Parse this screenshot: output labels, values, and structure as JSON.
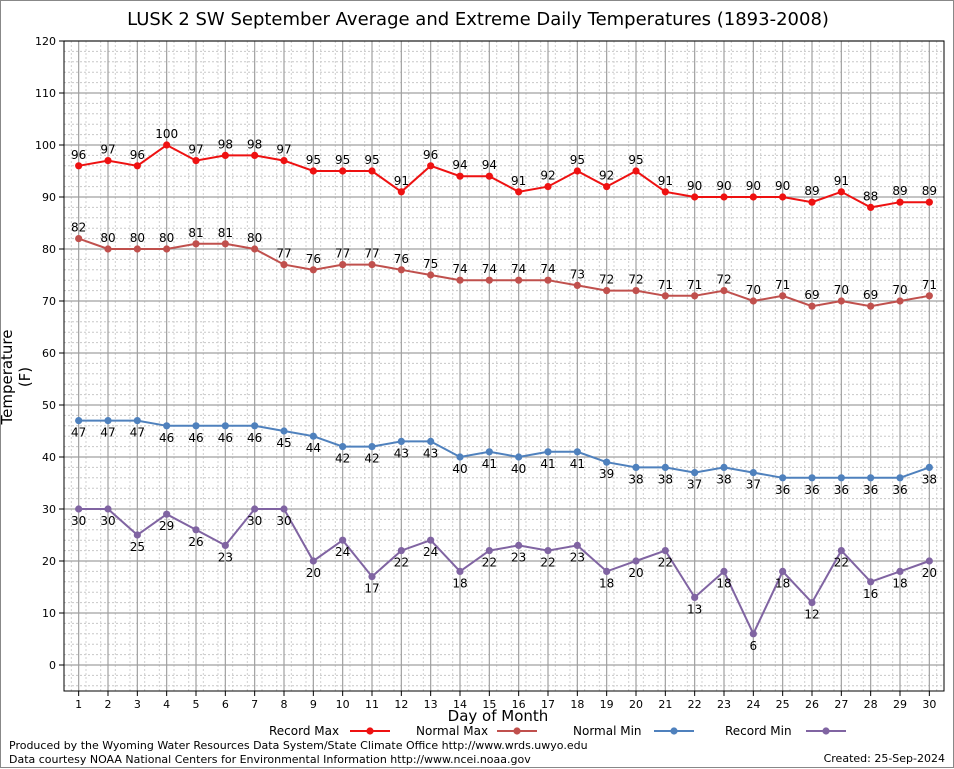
{
  "chart_data": {
    "type": "line",
    "title": "LUSK 2 SW September Average and Extreme Daily Temperatures (1893-2008)",
    "xlabel": "Day of Month",
    "ylabel": "Temperature (F)",
    "x": [
      1,
      2,
      3,
      4,
      5,
      6,
      7,
      8,
      9,
      10,
      11,
      12,
      13,
      14,
      15,
      16,
      17,
      18,
      19,
      20,
      21,
      22,
      23,
      24,
      25,
      26,
      27,
      28,
      29,
      30
    ],
    "xlim": [
      0.5,
      30.5
    ],
    "ylim": [
      -5,
      120
    ],
    "yticks": [
      0,
      10,
      20,
      30,
      40,
      50,
      60,
      70,
      80,
      90,
      100,
      110,
      120
    ],
    "grid": true,
    "legend_position": "bottom",
    "series": [
      {
        "name": "Record Max",
        "color": "#ee1111",
        "label_pos": "above",
        "values": [
          96,
          97,
          96,
          100,
          97,
          98,
          98,
          97,
          95,
          95,
          95,
          91,
          96,
          94,
          94,
          91,
          92,
          95,
          92,
          95,
          91,
          90,
          90,
          90,
          90,
          89,
          91,
          88,
          89,
          89
        ]
      },
      {
        "name": "Normal Max",
        "color": "#c0504d",
        "label_pos": "above",
        "values": [
          82,
          80,
          80,
          80,
          81,
          81,
          80,
          77,
          76,
          77,
          77,
          76,
          75,
          74,
          74,
          74,
          74,
          73,
          72,
          72,
          71,
          71,
          72,
          70,
          71,
          69,
          70,
          69,
          70,
          71
        ]
      },
      {
        "name": "Normal Min",
        "color": "#4f81bd",
        "label_pos": "below",
        "values": [
          47,
          47,
          47,
          46,
          46,
          46,
          46,
          45,
          44,
          42,
          42,
          43,
          43,
          40,
          41,
          40,
          41,
          41,
          39,
          38,
          38,
          37,
          38,
          37,
          36,
          36,
          36,
          36,
          36,
          38
        ]
      },
      {
        "name": "Record Min",
        "color": "#8064a2",
        "label_pos": "below",
        "values": [
          30,
          30,
          25,
          29,
          26,
          23,
          30,
          30,
          20,
          24,
          17,
          22,
          24,
          18,
          22,
          23,
          22,
          23,
          18,
          20,
          22,
          13,
          18,
          6,
          18,
          12,
          22,
          16,
          18,
          20
        ]
      }
    ]
  },
  "footer": {
    "line1": "Produced by the Wyoming Water Resources Data System/State Climate Office http://www.wrds.uwyo.edu",
    "line2": "Data courtesy NOAA National Centers for Environmental Information http://www.ncei.noaa.gov",
    "created": "Created:  25-Sep-2024"
  }
}
